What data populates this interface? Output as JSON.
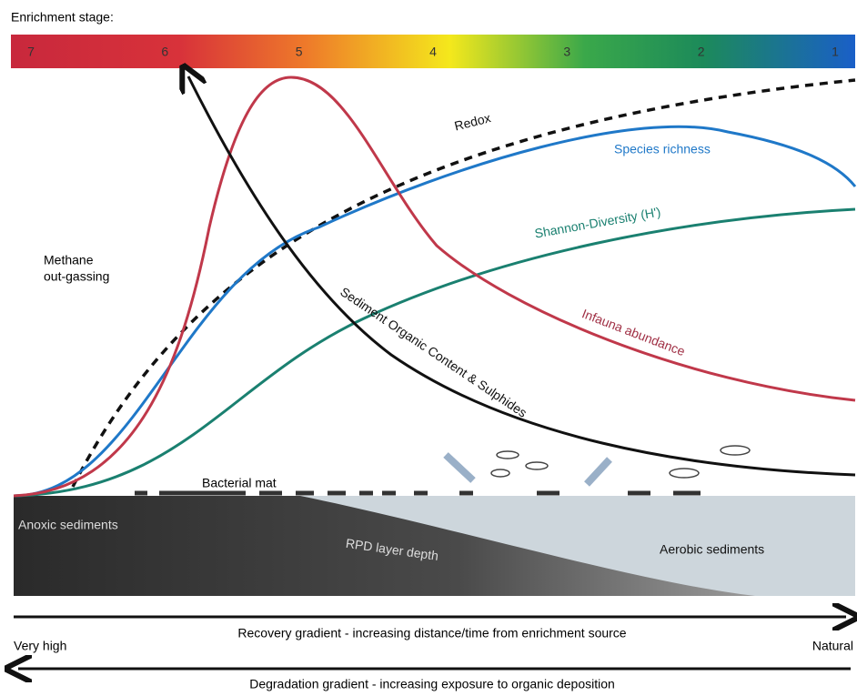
{
  "header": {
    "title": "Enrichment stage:"
  },
  "stages": [
    "7",
    "6",
    "5",
    "4",
    "3",
    "2",
    "1"
  ],
  "curves": {
    "redox": "Redox",
    "species": "Species richness",
    "shannon": "Shannon-Diversity (H')",
    "infauna": "Infauna abundance",
    "organic": "Sediment Organic Content & Sulphides"
  },
  "annotations": {
    "methane": [
      "Methane",
      "out-gassing"
    ]
  },
  "sediment": {
    "bacterial_mat": "Bacterial mat",
    "anoxic": "Anoxic sediments",
    "rpd": "RPD layer depth",
    "aerobic": "Aerobic sediments"
  },
  "gradients": {
    "recovery": "Recovery gradient - increasing distance/time from enrichment source",
    "degradation": "Degradation gradient - increasing exposure to organic deposition",
    "left": "Very high",
    "right": "Natural"
  }
}
